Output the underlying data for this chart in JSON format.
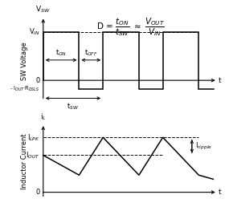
{
  "fig_width": 2.85,
  "fig_height": 2.63,
  "dpi": 100,
  "sw_ylabel": "SW Voltage",
  "ind_ylabel": "Inductor Current",
  "vin_level": 1.0,
  "neg_level": -0.18,
  "vsw_label": "V$_{SW}$",
  "vin_label": "V$_{IN}$",
  "ton_label": "t$_{ON}$",
  "toff_label": "t$_{OFF}$",
  "tsw_label": "t$_{SW}$",
  "neg_label": "- I$_{OUT}$$\\cdot$R$_{DSLS}$",
  "zero_label": "0",
  "il_label": "i$_L$",
  "ilpk_label": "I$_{LPK}$",
  "iout_label": "I$_{OUT}$",
  "iripple_label": "I$_{ripple}$",
  "t_label": "t",
  "line_color": "black",
  "bg_color": "white",
  "fontsize_label": 6.5,
  "fontsize_axis": 6.0,
  "fontsize_formula": 7.5
}
